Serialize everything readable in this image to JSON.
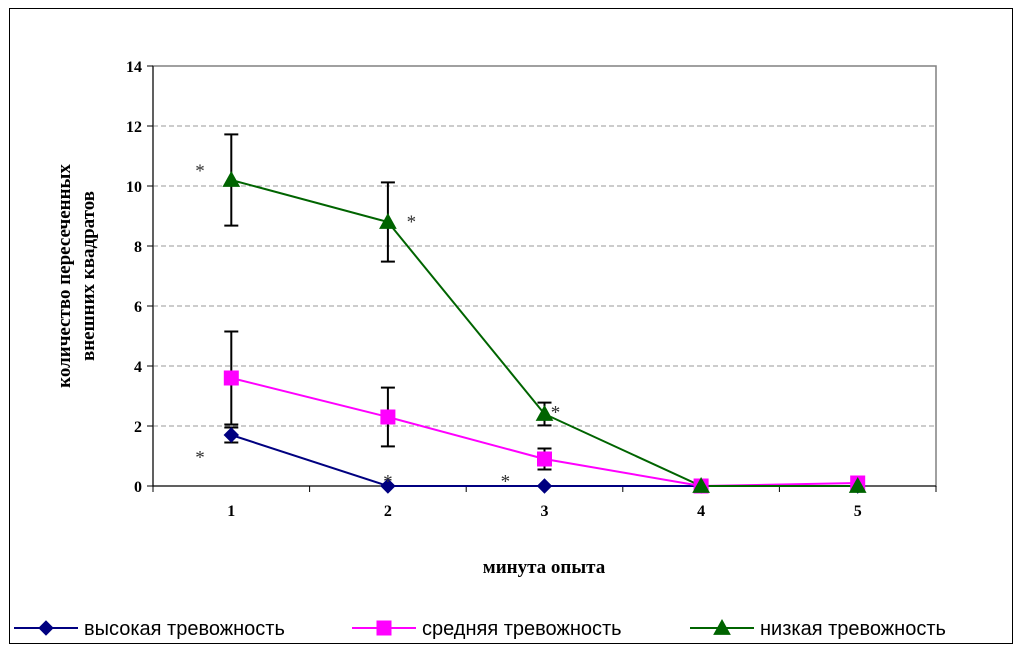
{
  "chart_data": {
    "type": "line",
    "title": "",
    "xlabel": "минута опыта",
    "ylabel_lines": [
      "количество пересеченных",
      "внешних квадратов"
    ],
    "categories": [
      "1",
      "2",
      "3",
      "4",
      "5"
    ],
    "ylim": [
      0,
      14
    ],
    "yticks": [
      "0",
      "2",
      "4",
      "6",
      "8",
      "10",
      "12",
      "14"
    ],
    "grid": true,
    "legend_position": "bottom",
    "series": [
      {
        "name": "высокая тревожность",
        "color": "#000080",
        "marker": "diamond",
        "values": [
          1.7,
          0,
          0,
          0,
          0
        ],
        "errors": [
          0.25,
          0,
          0,
          0,
          0
        ]
      },
      {
        "name": "средняя тревожность",
        "color": "#ff00ff",
        "marker": "square",
        "values": [
          3.6,
          2.3,
          0.9,
          0,
          0.1
        ],
        "errors": [
          1.55,
          0.98,
          0.35,
          0,
          0
        ]
      },
      {
        "name": "низкая тревожность",
        "color": "#006400",
        "marker": "triangle",
        "values": [
          10.2,
          8.8,
          2.4,
          0,
          0
        ],
        "errors": [
          1.52,
          1.32,
          0.38,
          0,
          0
        ]
      }
    ],
    "annotations": [
      {
        "text": "*",
        "x": 0.8,
        "y": 10.6
      },
      {
        "text": "*",
        "x": 2.15,
        "y": 8.9
      },
      {
        "text": "*",
        "x": 0.8,
        "y": 1.05
      },
      {
        "text": "*",
        "x": 2.0,
        "y": 0.25
      },
      {
        "text": "*",
        "x": 2.75,
        "y": 0.25
      },
      {
        "text": "*",
        "x": 3.07,
        "y": 2.55
      }
    ]
  }
}
